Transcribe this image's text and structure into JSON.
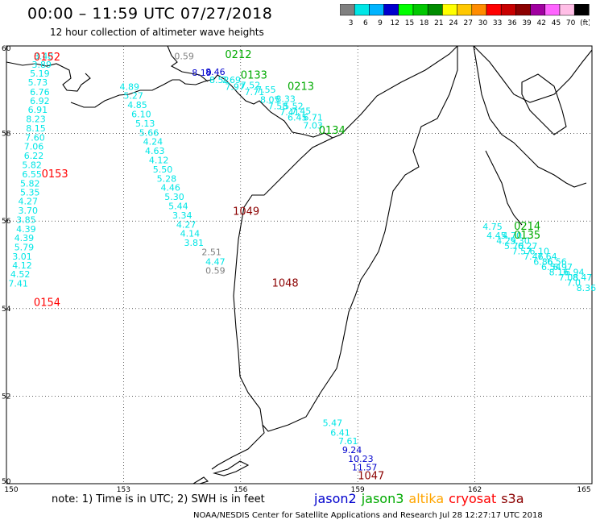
{
  "header": {
    "title": "00:00 – 11:59 UTC 07/27/2018",
    "subtitle": "12 hour collection of altimeter wave heights"
  },
  "colorbar": {
    "ticks": [
      "3",
      "6",
      "9",
      "12",
      "15",
      "18",
      "21",
      "24",
      "27",
      "30",
      "33",
      "36",
      "39",
      "42",
      "45",
      "70",
      "(ft)"
    ],
    "colors": [
      "#808080",
      "#00e6e6",
      "#00b4ff",
      "#0000cd",
      "#00ff00",
      "#00c800",
      "#008c00",
      "#ffff00",
      "#ffc800",
      "#ff8c00",
      "#ff0000",
      "#c80000",
      "#8b0000",
      "#a000a0",
      "#ff64ff",
      "#ffbee6",
      "#000000"
    ]
  },
  "map": {
    "lat_labels": [
      "60",
      "58",
      "56",
      "54",
      "52",
      "50"
    ],
    "lon_labels": [
      "150",
      "153",
      "156",
      "159",
      "162",
      "165"
    ],
    "annotations": [
      {
        "text": "0152",
        "color": "#ff0000",
        "lon": 150.7,
        "lat": 59.67
      },
      {
        "text": "0153",
        "color": "#ff0000",
        "lon": 150.9,
        "lat": 57.0
      },
      {
        "text": "0154",
        "color": "#ff0000",
        "lon": 150.7,
        "lat": 54.06
      },
      {
        "text": "0212",
        "color": "#00aa00",
        "lon": 155.6,
        "lat": 59.72
      },
      {
        "text": "0133",
        "color": "#00aa00",
        "lon": 156.0,
        "lat": 59.25
      },
      {
        "text": "0213",
        "color": "#00aa00",
        "lon": 157.2,
        "lat": 59.0
      },
      {
        "text": "0134",
        "color": "#00aa00",
        "lon": 158.0,
        "lat": 57.99
      },
      {
        "text": "0214",
        "color": "#00aa00",
        "lon": 163.0,
        "lat": 55.8
      },
      {
        "text": "0135",
        "color": "#00aa00",
        "lon": 163.0,
        "lat": 55.6
      },
      {
        "text": "1049",
        "color": "#8b0000",
        "lon": 155.8,
        "lat": 56.14
      },
      {
        "text": "1048",
        "color": "#8b0000",
        "lon": 156.8,
        "lat": 54.5
      },
      {
        "text": "1047",
        "color": "#8b0000",
        "lon": 159.0,
        "lat": 50.1
      }
    ],
    "tracks": [
      {
        "color": "#00e6e6",
        "points": [
          {
            "v": "3.48",
            "lon": 150.7,
            "lat": 59.7
          },
          {
            "v": "3.89",
            "lon": 150.65,
            "lat": 59.5
          },
          {
            "v": "5.19",
            "lon": 150.6,
            "lat": 59.3
          },
          {
            "v": "5.73",
            "lon": 150.55,
            "lat": 59.1
          },
          {
            "v": "6.76",
            "lon": 150.6,
            "lat": 58.88
          },
          {
            "v": "6.92",
            "lon": 150.6,
            "lat": 58.67
          },
          {
            "v": "6.91",
            "lon": 150.55,
            "lat": 58.47
          },
          {
            "v": "8.23",
            "lon": 150.5,
            "lat": 58.26
          },
          {
            "v": "8.15",
            "lon": 150.5,
            "lat": 58.05
          },
          {
            "v": "7.60",
            "lon": 150.48,
            "lat": 57.84
          },
          {
            "v": "7.06",
            "lon": 150.45,
            "lat": 57.63
          },
          {
            "v": "6.22",
            "lon": 150.45,
            "lat": 57.42
          },
          {
            "v": "5.82",
            "lon": 150.4,
            "lat": 57.21
          },
          {
            "v": "6.55",
            "lon": 150.4,
            "lat": 57.0
          },
          {
            "v": "5.82",
            "lon": 150.35,
            "lat": 56.79
          },
          {
            "v": "5.35",
            "lon": 150.35,
            "lat": 56.58
          },
          {
            "v": "4.27",
            "lon": 150.3,
            "lat": 56.38
          },
          {
            "v": "3.70",
            "lon": 150.3,
            "lat": 56.17
          },
          {
            "v": "3.85",
            "lon": 150.25,
            "lat": 55.96
          },
          {
            "v": "4.39",
            "lon": 150.25,
            "lat": 55.75
          },
          {
            "v": "4.39",
            "lon": 150.2,
            "lat": 55.54
          },
          {
            "v": "5.79",
            "lon": 150.2,
            "lat": 55.33
          },
          {
            "v": "3.01",
            "lon": 150.15,
            "lat": 55.12
          },
          {
            "v": "4.12",
            "lon": 150.15,
            "lat": 54.92
          },
          {
            "v": "4.52",
            "lon": 150.1,
            "lat": 54.71
          },
          {
            "v": "7.41",
            "lon": 150.05,
            "lat": 54.5
          }
        ]
      },
      {
        "color": "#00e6e6",
        "points": [
          {
            "v": "4.89",
            "lon": 152.9,
            "lat": 59.0
          },
          {
            "v": "5.27",
            "lon": 153.0,
            "lat": 58.79
          },
          {
            "v": "4.85",
            "lon": 153.1,
            "lat": 58.58
          },
          {
            "v": "6.10",
            "lon": 153.2,
            "lat": 58.37
          },
          {
            "v": "5.13",
            "lon": 153.3,
            "lat": 58.16
          },
          {
            "v": "5.66",
            "lon": 153.4,
            "lat": 57.95
          },
          {
            "v": "4.24",
            "lon": 153.5,
            "lat": 57.74
          },
          {
            "v": "4.63",
            "lon": 153.55,
            "lat": 57.53
          },
          {
            "v": "4.12",
            "lon": 153.65,
            "lat": 57.32
          },
          {
            "v": "5.50",
            "lon": 153.75,
            "lat": 57.11
          },
          {
            "v": "5.28",
            "lon": 153.85,
            "lat": 56.9
          },
          {
            "v": "4.46",
            "lon": 153.95,
            "lat": 56.69
          },
          {
            "v": "5.30",
            "lon": 154.05,
            "lat": 56.48
          },
          {
            "v": "5.44",
            "lon": 154.15,
            "lat": 56.27
          },
          {
            "v": "3.34",
            "lon": 154.25,
            "lat": 56.06
          },
          {
            "v": "4.27",
            "lon": 154.35,
            "lat": 55.85
          },
          {
            "v": "4.14",
            "lon": 154.45,
            "lat": 55.64
          },
          {
            "v": "3.81",
            "lon": 154.55,
            "lat": 55.43
          }
        ]
      },
      {
        "color": "#808080",
        "points": [
          {
            "v": "0.59",
            "lon": 154.3,
            "lat": 59.7
          },
          {
            "v": "2.51",
            "lon": 155.0,
            "lat": 55.22
          },
          {
            "v": "0.59",
            "lon": 155.1,
            "lat": 54.8
          }
        ]
      },
      {
        "color": "#00e6e6",
        "points": [
          {
            "v": "4.47",
            "lon": 155.1,
            "lat": 55.0
          }
        ]
      },
      {
        "color": "#0000cd",
        "points": [
          {
            "v": "8.19",
            "lon": 154.75,
            "lat": 59.32
          },
          {
            "v": "8.46",
            "lon": 155.1,
            "lat": 59.34
          }
        ]
      },
      {
        "color": "#00e6e6",
        "points": [
          {
            "v": "8.52",
            "lon": 155.2,
            "lat": 59.15
          },
          {
            "v": "7.69",
            "lon": 155.5,
            "lat": 59.15
          },
          {
            "v": "7.97",
            "lon": 155.6,
            "lat": 59.0
          },
          {
            "v": "7.52",
            "lon": 156.0,
            "lat": 59.03
          },
          {
            "v": "7.71",
            "lon": 156.1,
            "lat": 58.88
          },
          {
            "v": "7.55",
            "lon": 156.4,
            "lat": 58.93
          },
          {
            "v": "8.05",
            "lon": 156.5,
            "lat": 58.7
          },
          {
            "v": "8.33",
            "lon": 156.9,
            "lat": 58.72
          },
          {
            "v": "7.58",
            "lon": 156.7,
            "lat": 58.55
          },
          {
            "v": "5.52",
            "lon": 157.1,
            "lat": 58.55
          },
          {
            "v": "7.41",
            "lon": 157.0,
            "lat": 58.42
          },
          {
            "v": "7.45",
            "lon": 157.3,
            "lat": 58.44
          },
          {
            "v": "6.45",
            "lon": 157.2,
            "lat": 58.3
          },
          {
            "v": "6.71",
            "lon": 157.6,
            "lat": 58.3
          },
          {
            "v": "7.03",
            "lon": 157.6,
            "lat": 58.11
          }
        ]
      },
      {
        "color": "#00e6e6",
        "points": [
          {
            "v": "4.75",
            "lon": 162.2,
            "lat": 55.8
          },
          {
            "v": "4.45",
            "lon": 162.3,
            "lat": 55.6
          },
          {
            "v": "4.70",
            "lon": 162.7,
            "lat": 55.6
          },
          {
            "v": "4.29",
            "lon": 162.55,
            "lat": 55.48
          },
          {
            "v": "5.30",
            "lon": 162.9,
            "lat": 55.48
          },
          {
            "v": "5.70",
            "lon": 162.75,
            "lat": 55.36
          },
          {
            "v": "6.27",
            "lon": 163.1,
            "lat": 55.36
          },
          {
            "v": "7.57",
            "lon": 162.95,
            "lat": 55.24
          },
          {
            "v": "6.10",
            "lon": 163.4,
            "lat": 55.24
          },
          {
            "v": "7.46",
            "lon": 163.25,
            "lat": 55.12
          },
          {
            "v": "7.64",
            "lon": 163.6,
            "lat": 55.12
          },
          {
            "v": "6.86",
            "lon": 163.5,
            "lat": 55.0
          },
          {
            "v": "6.56",
            "lon": 163.85,
            "lat": 55.0
          },
          {
            "v": "6.54",
            "lon": 163.7,
            "lat": 54.88
          },
          {
            "v": "6.97",
            "lon": 164.0,
            "lat": 54.88
          },
          {
            "v": "8.16",
            "lon": 163.9,
            "lat": 54.76
          },
          {
            "v": "6.94",
            "lon": 164.3,
            "lat": 54.76
          },
          {
            "v": "7.08",
            "lon": 164.15,
            "lat": 54.64
          },
          {
            "v": "8.47",
            "lon": 164.5,
            "lat": 54.64
          },
          {
            "v": "7.0",
            "lon": 164.35,
            "lat": 54.52
          },
          {
            "v": "8.36",
            "lon": 164.6,
            "lat": 54.4
          }
        ]
      },
      {
        "color": "#00e6e6",
        "points": [
          {
            "v": "5.47",
            "lon": 158.1,
            "lat": 51.32
          },
          {
            "v": "6.41",
            "lon": 158.3,
            "lat": 51.1
          },
          {
            "v": "7.61",
            "lon": 158.5,
            "lat": 50.9
          }
        ]
      },
      {
        "color": "#0000cd",
        "points": [
          {
            "v": "9.24",
            "lon": 158.6,
            "lat": 50.7
          },
          {
            "v": "10.23",
            "lon": 158.75,
            "lat": 50.5
          },
          {
            "v": "11.57",
            "lon": 158.85,
            "lat": 50.3
          }
        ]
      }
    ]
  },
  "footer": {
    "note": "note:  1) Time is in UTC;  2) SWH is in feet",
    "credit": "NOAA/NESDIS Center for Satellite Applications and Research    Jul 28 12:27:17 UTC 2018",
    "legend": [
      {
        "text": "jason2",
        "color": "#0000cd"
      },
      {
        "text": "jason3",
        "color": "#00aa00"
      },
      {
        "text": "altika",
        "color": "#ffa500"
      },
      {
        "text": "cryosat",
        "color": "#ff0000"
      },
      {
        "text": "s3a",
        "color": "#8b0000"
      }
    ]
  }
}
